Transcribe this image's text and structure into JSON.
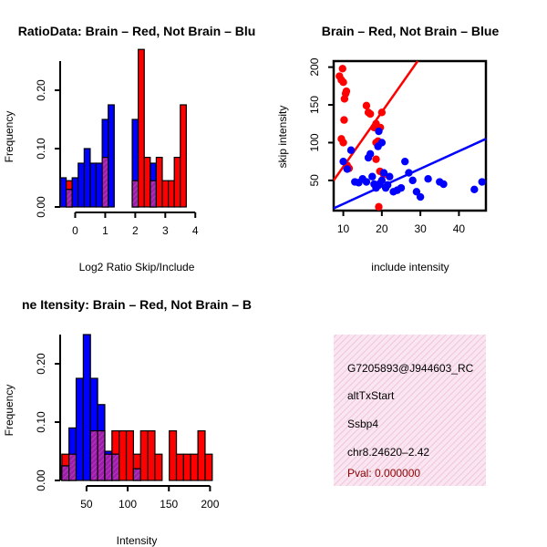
{
  "colors": {
    "red": "#ff0000",
    "blue": "#0000ff",
    "overlap": "#9b1fa8",
    "info_bg": "#f8dcec",
    "pval": "#8b0000"
  },
  "chart_data": [
    {
      "type": "bar",
      "title": "RatioData: Brain – Red, Not Brain – Blu",
      "xlabel": "Log2 Ratio Skip/Include",
      "ylabel": "Frequency",
      "xlim": [
        -0.5,
        4.6
      ],
      "ylim": [
        0,
        0.25
      ],
      "xticks": [
        "0",
        "1",
        "2",
        "3",
        "4"
      ],
      "xtick_values": [
        0,
        1,
        2,
        3,
        4
      ],
      "yticks": [
        "0.00",
        "0.10",
        "0.20"
      ],
      "ytick_values": [
        0,
        0.1,
        0.2
      ],
      "bin_start": -0.5,
      "bin_width": 0.2,
      "series": [
        {
          "name": "Not Brain",
          "values": [
            0.05,
            0.03,
            0.05,
            0.075,
            0.1,
            0.075,
            0.075,
            0.15,
            0.175,
            0,
            0,
            0,
            0.15,
            0,
            0,
            0.075,
            0,
            0,
            0,
            0,
            0,
            0
          ]
        },
        {
          "name": "Brain",
          "values": [
            0,
            0.045,
            0,
            0,
            0,
            0,
            0,
            0.085,
            0,
            0,
            0,
            0,
            0.045,
            0.27,
            0.085,
            0.045,
            0.085,
            0.045,
            0.045,
            0.085,
            0.175,
            0
          ]
        }
      ]
    },
    {
      "type": "scatter",
      "title": "Brain – Red, Not Brain – Blue",
      "xlabel": "include intensity",
      "ylabel": "skip intensity",
      "xlim": [
        7.5,
        47
      ],
      "ylim": [
        10,
        208
      ],
      "xticks": [
        "10",
        "20",
        "30",
        "40"
      ],
      "xtick_values": [
        10,
        20,
        30,
        40
      ],
      "yticks": [
        "50",
        "100",
        "150",
        "200"
      ],
      "ytick_values": [
        50,
        100,
        150,
        200
      ],
      "series": [
        {
          "name": "Brain",
          "points": [
            [
              9,
              188
            ],
            [
              9.5,
              183
            ],
            [
              9.8,
              198
            ],
            [
              10,
              180
            ],
            [
              10.3,
              158
            ],
            [
              10.6,
              165
            ],
            [
              10.8,
              168
            ],
            [
              10.2,
              130
            ],
            [
              9.5,
              105
            ],
            [
              10,
              100
            ],
            [
              11,
              70
            ],
            [
              11.5,
              66
            ],
            [
              10.8,
              68
            ],
            [
              16,
              149
            ],
            [
              16.5,
              140
            ],
            [
              17,
              138
            ],
            [
              18,
              120
            ],
            [
              18.5,
              125
            ],
            [
              19,
              102
            ],
            [
              18.5,
              100
            ],
            [
              19.2,
              99
            ],
            [
              19.6,
              120
            ],
            [
              20,
              140
            ],
            [
              18.5,
              78
            ],
            [
              19.5,
              62
            ],
            [
              20.5,
              58
            ],
            [
              19.2,
              15
            ]
          ]
        },
        {
          "name": "Not Brain",
          "points": [
            [
              10,
              75
            ],
            [
              11,
              65
            ],
            [
              12,
              90
            ],
            [
              13,
              48
            ],
            [
              14,
              47
            ],
            [
              15,
              52
            ],
            [
              16,
              48
            ],
            [
              16.5,
              80
            ],
            [
              17,
              85
            ],
            [
              17.5,
              55
            ],
            [
              18,
              45
            ],
            [
              18.5,
              40
            ],
            [
              19,
              43
            ],
            [
              19.5,
              46
            ],
            [
              19,
              95
            ],
            [
              19.2,
              115
            ],
            [
              20,
              50
            ],
            [
              20.5,
              60
            ],
            [
              21,
              40
            ],
            [
              21.5,
              44
            ],
            [
              22,
              55
            ],
            [
              23,
              35
            ],
            [
              24,
              37
            ],
            [
              25,
              40
            ],
            [
              26,
              75
            ],
            [
              27,
              60
            ],
            [
              28,
              50
            ],
            [
              29,
              35
            ],
            [
              30,
              28
            ],
            [
              32,
              52
            ],
            [
              35,
              48
            ],
            [
              36,
              45
            ],
            [
              44,
              38
            ],
            [
              46,
              48
            ],
            [
              20,
              100
            ]
          ]
        }
      ],
      "fit_lines": [
        {
          "name": "Brain",
          "x": [
            7.5,
            29.3
          ],
          "y": [
            50,
            208
          ]
        },
        {
          "name": "Not Brain",
          "x": [
            7.5,
            47
          ],
          "y": [
            13,
            105
          ]
        }
      ]
    },
    {
      "type": "bar",
      "title": "ne Itensity: Brain – Red, Not Brain – B",
      "xlabel": "Intensity",
      "ylabel": "Frequency",
      "xlim": [
        18,
        204
      ],
      "ylim": [
        0,
        0.25
      ],
      "xticks": [
        "50",
        "100",
        "150",
        "200"
      ],
      "xtick_values": [
        50,
        100,
        150,
        200
      ],
      "yticks": [
        "0.00",
        "0.10",
        "0.20"
      ],
      "ytick_values": [
        0,
        0.1,
        0.2
      ],
      "bin_start": 20,
      "bin_width": 8.7,
      "series": [
        {
          "name": "Not Brain",
          "values": [
            0.025,
            0.09,
            0.175,
            0.25,
            0.175,
            0.13,
            0.05,
            0.045,
            0,
            0,
            0.02,
            0,
            0,
            0,
            0,
            0,
            0,
            0,
            0,
            0,
            0
          ]
        },
        {
          "name": "Brain",
          "values": [
            0.045,
            0.045,
            0,
            0,
            0.085,
            0.085,
            0.045,
            0.085,
            0.085,
            0.085,
            0.045,
            0.085,
            0.085,
            0.045,
            0,
            0.085,
            0.045,
            0.045,
            0.045,
            0.085,
            0.045
          ]
        }
      ]
    }
  ],
  "info": {
    "id": "G7205893@J944603_RC",
    "event": "altTxStart",
    "gene": "Ssbp4",
    "location": "chr8.24620–2.42",
    "pval": "Pval: 0.000000"
  }
}
